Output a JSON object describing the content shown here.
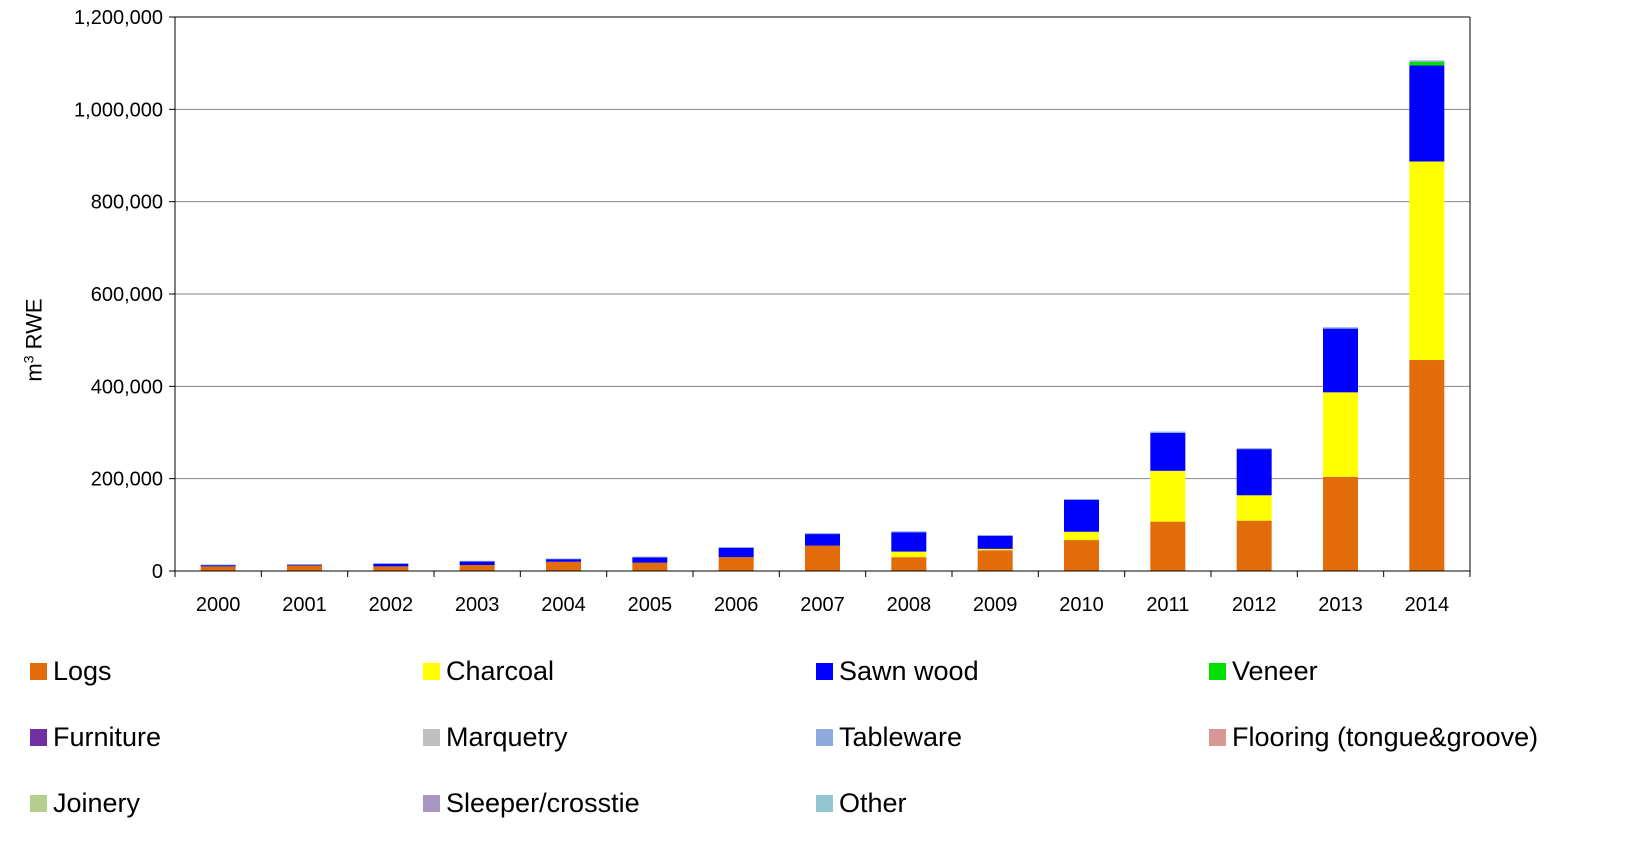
{
  "chart_data": {
    "type": "bar",
    "stacked": true,
    "title": "",
    "xlabel": "",
    "ylabel": {
      "base": "m",
      "superscript": "3",
      "rest": " RWE"
    },
    "ylim": [
      0,
      1200000
    ],
    "yticks": [
      "0",
      "200,000",
      "400,000",
      "600,000",
      "800,000",
      "1,000,000",
      "1,200,000"
    ],
    "ytick_values": [
      0,
      200000,
      400000,
      600000,
      800000,
      1000000,
      1200000
    ],
    "grid": "horizontal",
    "legend_position": "bottom",
    "categories": [
      "2000",
      "2001",
      "2002",
      "2003",
      "2004",
      "2005",
      "2006",
      "2007",
      "2008",
      "2009",
      "2010",
      "2011",
      "2012",
      "2013",
      "2014"
    ],
    "series": [
      {
        "name": "Logs",
        "color": "#E36C0A",
        "values": [
          10000,
          12000,
          10000,
          13000,
          20000,
          18000,
          30000,
          55000,
          30000,
          45000,
          67000,
          107000,
          109000,
          204000,
          457000
        ]
      },
      {
        "name": "Charcoal",
        "color": "#FFFF00",
        "values": [
          0,
          0,
          0,
          0,
          0,
          0,
          0,
          0,
          12000,
          3000,
          18000,
          110000,
          55000,
          183000,
          430000
        ]
      },
      {
        "name": "Sawn wood",
        "color": "#0000FF",
        "values": [
          3000,
          2000,
          6000,
          8000,
          6000,
          12000,
          20000,
          25000,
          42000,
          28000,
          69000,
          82000,
          100000,
          138000,
          208000
        ]
      },
      {
        "name": "Veneer",
        "color": "#00E000",
        "values": [
          0,
          0,
          0,
          0,
          0,
          0,
          0,
          0,
          0,
          0,
          0,
          0,
          0,
          0,
          8000
        ]
      },
      {
        "name": "Furniture",
        "color": "#7030A0",
        "values": [
          0,
          0,
          0,
          0,
          0,
          0,
          0,
          0,
          0,
          0,
          0,
          0,
          0,
          0,
          0
        ]
      },
      {
        "name": "Marquetry",
        "color": "#BFBFBF",
        "values": [
          0,
          0,
          0,
          0,
          0,
          0,
          0,
          0,
          0,
          0,
          0,
          0,
          0,
          0,
          0
        ]
      },
      {
        "name": "Tableware",
        "color": "#8EA9DB",
        "values": [
          1000,
          1000,
          1000,
          1000,
          1000,
          1000,
          2000,
          2000,
          2000,
          2000,
          2000,
          3000,
          2000,
          3000,
          3000
        ]
      },
      {
        "name": "Flooring (tongue&groove)",
        "color": "#D99694",
        "values": [
          0,
          0,
          0,
          0,
          0,
          0,
          0,
          0,
          0,
          0,
          0,
          0,
          0,
          0,
          0
        ]
      },
      {
        "name": "Joinery",
        "color": "#B3CF8E",
        "values": [
          0,
          0,
          0,
          0,
          0,
          0,
          0,
          0,
          0,
          0,
          0,
          0,
          0,
          0,
          0
        ]
      },
      {
        "name": "Sleeper/crosstie",
        "color": "#A897C2",
        "values": [
          0,
          0,
          0,
          0,
          0,
          0,
          0,
          0,
          0,
          0,
          0,
          0,
          0,
          0,
          0
        ]
      },
      {
        "name": "Other",
        "color": "#93C5D3",
        "values": [
          0,
          0,
          0,
          0,
          0,
          0,
          0,
          0,
          0,
          0,
          0,
          0,
          0,
          0,
          0
        ]
      }
    ]
  }
}
